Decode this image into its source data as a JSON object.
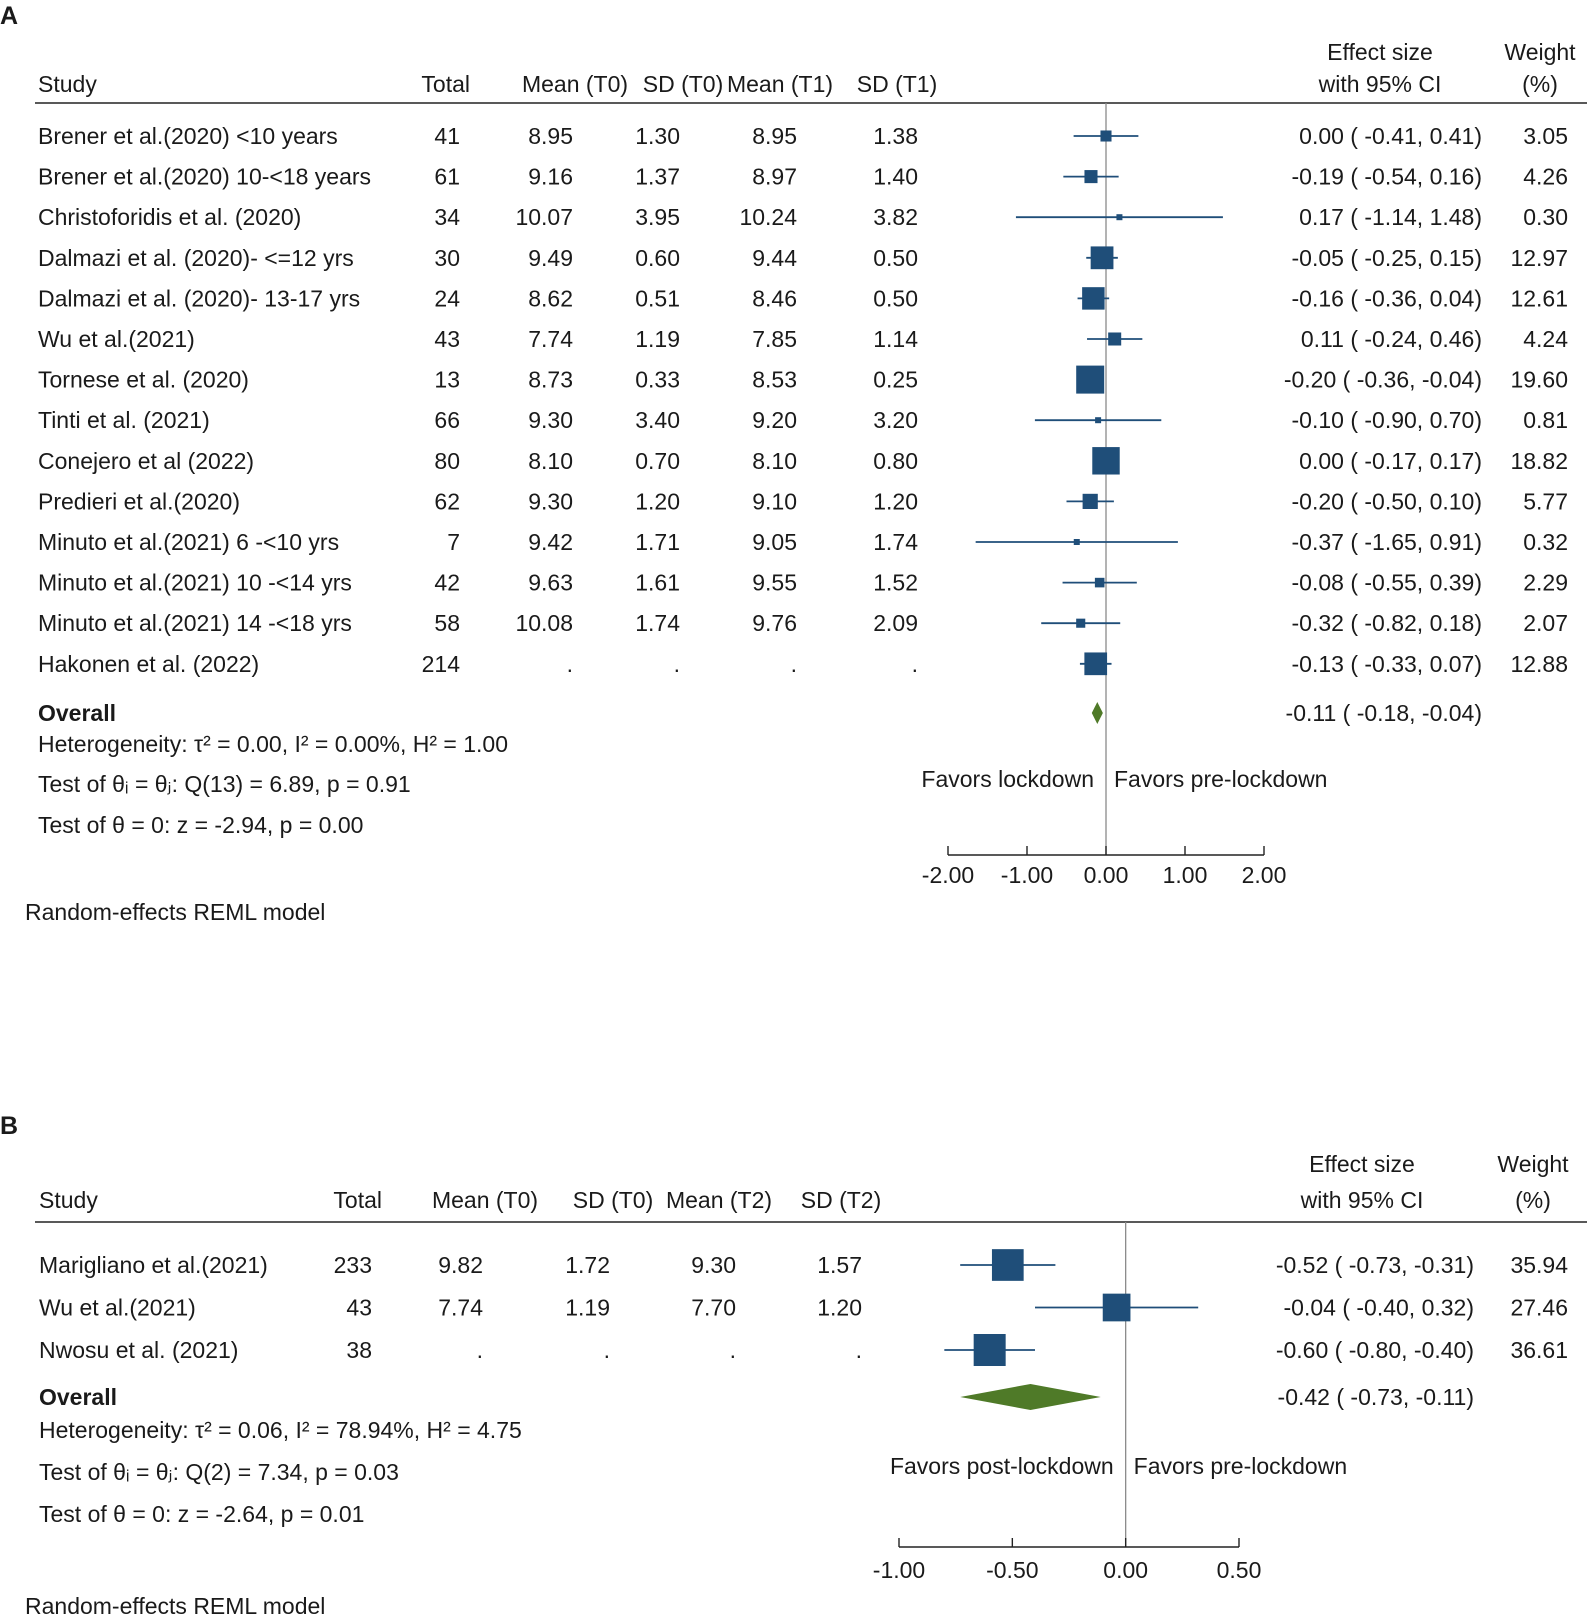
{
  "chart_data": [
    {
      "type": "forest",
      "panel_label": "A",
      "headers": {
        "study": "Study",
        "total": "Total",
        "mean_a": "Mean (T0)",
        "sd_a": "SD (T0)",
        "mean_b": "Mean (T1)",
        "sd_b": "SD (T1)",
        "effect_1": "Effect size",
        "effect_2": "with 95% CI",
        "weight_1": "Weight",
        "weight_2": "(%)"
      },
      "rows": [
        {
          "study": "Brener et al.(2020) <10 years",
          "total": "41",
          "mean_a": "8.95",
          "sd_a": "1.30",
          "mean_b": "8.95",
          "sd_b": "1.38",
          "es": 0.0,
          "lo": -0.41,
          "hi": 0.41,
          "ci_text": "0.00 ( -0.41,  0.41)",
          "weight": 3.05,
          "weight_text": "3.05"
        },
        {
          "study": "Brener et al.(2020) 10-<18 years",
          "total": "61",
          "mean_a": "9.16",
          "sd_a": "1.37",
          "mean_b": "8.97",
          "sd_b": "1.40",
          "es": -0.19,
          "lo": -0.54,
          "hi": 0.16,
          "ci_text": "-0.19 ( -0.54,  0.16)",
          "weight": 4.26,
          "weight_text": "4.26"
        },
        {
          "study": "Christoforidis et al. (2020)",
          "total": "34",
          "mean_a": "10.07",
          "sd_a": "3.95",
          "mean_b": "10.24",
          "sd_b": "3.82",
          "es": 0.17,
          "lo": -1.14,
          "hi": 1.48,
          "ci_text": "0.17 ( -1.14,  1.48)",
          "weight": 0.3,
          "weight_text": "0.30"
        },
        {
          "study": "Dalmazi et al. (2020)- <=12 yrs",
          "total": "30",
          "mean_a": "9.49",
          "sd_a": "0.60",
          "mean_b": "9.44",
          "sd_b": "0.50",
          "es": -0.05,
          "lo": -0.25,
          "hi": 0.15,
          "ci_text": "-0.05 ( -0.25,  0.15)",
          "weight": 12.97,
          "weight_text": "12.97"
        },
        {
          "study": "Dalmazi et al. (2020)- 13-17 yrs",
          "total": "24",
          "mean_a": "8.62",
          "sd_a": "0.51",
          "mean_b": "8.46",
          "sd_b": "0.50",
          "es": -0.16,
          "lo": -0.36,
          "hi": 0.04,
          "ci_text": "-0.16 ( -0.36,  0.04)",
          "weight": 12.61,
          "weight_text": "12.61"
        },
        {
          "study": "Wu et al.(2021)",
          "total": "43",
          "mean_a": "7.74",
          "sd_a": "1.19",
          "mean_b": "7.85",
          "sd_b": "1.14",
          "es": 0.11,
          "lo": -0.24,
          "hi": 0.46,
          "ci_text": "0.11 ( -0.24,  0.46)",
          "weight": 4.24,
          "weight_text": "4.24"
        },
        {
          "study": "Tornese et al. (2020)",
          "total": "13",
          "mean_a": "8.73",
          "sd_a": "0.33",
          "mean_b": "8.53",
          "sd_b": "0.25",
          "es": -0.2,
          "lo": -0.36,
          "hi": -0.04,
          "ci_text": "-0.20 ( -0.36, -0.04)",
          "weight": 19.6,
          "weight_text": "19.60"
        },
        {
          "study": "Tinti et al. (2021)",
          "total": "66",
          "mean_a": "9.30",
          "sd_a": "3.40",
          "mean_b": "9.20",
          "sd_b": "3.20",
          "es": -0.1,
          "lo": -0.9,
          "hi": 0.7,
          "ci_text": "-0.10 ( -0.90,  0.70)",
          "weight": 0.81,
          "weight_text": "0.81"
        },
        {
          "study": "Conejero et al (2022)",
          "total": "80",
          "mean_a": "8.10",
          "sd_a": "0.70",
          "mean_b": "8.10",
          "sd_b": "0.80",
          "es": 0.0,
          "lo": -0.17,
          "hi": 0.17,
          "ci_text": "0.00 ( -0.17,  0.17)",
          "weight": 18.82,
          "weight_text": "18.82"
        },
        {
          "study": "Predieri et al.(2020)",
          "total": "62",
          "mean_a": "9.30",
          "sd_a": "1.20",
          "mean_b": "9.10",
          "sd_b": "1.20",
          "es": -0.2,
          "lo": -0.5,
          "hi": 0.1,
          "ci_text": "-0.20 ( -0.50,  0.10)",
          "weight": 5.77,
          "weight_text": "5.77"
        },
        {
          "study": "Minuto et al.(2021) 6 -<10 yrs",
          "total": "7",
          "mean_a": "9.42",
          "sd_a": "1.71",
          "mean_b": "9.05",
          "sd_b": "1.74",
          "es": -0.37,
          "lo": -1.65,
          "hi": 0.91,
          "ci_text": "-0.37 ( -1.65,  0.91)",
          "weight": 0.32,
          "weight_text": "0.32"
        },
        {
          "study": "Minuto et al.(2021) 10 -<14 yrs",
          "total": "42",
          "mean_a": "9.63",
          "sd_a": "1.61",
          "mean_b": "9.55",
          "sd_b": "1.52",
          "es": -0.08,
          "lo": -0.55,
          "hi": 0.39,
          "ci_text": "-0.08 ( -0.55,  0.39)",
          "weight": 2.29,
          "weight_text": "2.29"
        },
        {
          "study": "Minuto et al.(2021) 14 -<18 yrs",
          "total": "58",
          "mean_a": "10.08",
          "sd_a": "1.74",
          "mean_b": "9.76",
          "sd_b": "2.09",
          "es": -0.32,
          "lo": -0.82,
          "hi": 0.18,
          "ci_text": "-0.32 ( -0.82,  0.18)",
          "weight": 2.07,
          "weight_text": "2.07"
        },
        {
          "study": "Hakonen et al. (2022)",
          "total": "214",
          "mean_a": ".",
          "sd_a": ".",
          "mean_b": ".",
          "sd_b": ".",
          "es": -0.13,
          "lo": -0.33,
          "hi": 0.07,
          "ci_text": "-0.13 ( -0.33,  0.07)",
          "weight": 12.88,
          "weight_text": "12.88"
        }
      ],
      "overall": {
        "label": "Overall",
        "es": -0.11,
        "lo": -0.18,
        "hi": -0.04,
        "ci_text": "-0.11 ( -0.18, -0.04)"
      },
      "stats": [
        "Heterogeneity: τ² = 0.00, I² = 0.00%, H² = 1.00",
        "Test of θᵢ = θⱼ: Q(13) = 6.89, p = 0.91",
        "Test of θ = 0: z = -2.94, p = 0.00"
      ],
      "favors_left": "Favors lockdown",
      "favors_right": "Favors pre-lockdown",
      "xlim": [
        -2.0,
        2.0
      ],
      "ticks": [
        -2,
        -1,
        0,
        1,
        2
      ],
      "tick_labels": [
        "-2.00",
        "-1.00",
        "0.00",
        "1.00",
        "2.00"
      ],
      "model_note": "Random-effects REML model",
      "colors": {
        "box": "#1f4e79",
        "line": "#1f4e79",
        "diamond": "#4f7a28"
      }
    },
    {
      "type": "forest",
      "panel_label": "B",
      "headers": {
        "study": "Study",
        "total": "Total",
        "mean_a": "Mean (T0)",
        "sd_a": "SD (T0)",
        "mean_b": "Mean (T2)",
        "sd_b": "SD (T2)",
        "effect_1": "Effect size",
        "effect_2": "with 95% CI",
        "weight_1": "Weight",
        "weight_2": "(%)"
      },
      "rows": [
        {
          "study": "Marigliano et al.(2021)",
          "total": "233",
          "mean_a": "9.82",
          "sd_a": "1.72",
          "mean_b": "9.30",
          "sd_b": "1.57",
          "es": -0.52,
          "lo": -0.73,
          "hi": -0.31,
          "ci_text": "-0.52 ( -0.73, -0.31)",
          "weight": 35.94,
          "weight_text": "35.94"
        },
        {
          "study": "Wu et al.(2021)",
          "total": "43",
          "mean_a": "7.74",
          "sd_a": "1.19",
          "mean_b": "7.70",
          "sd_b": "1.20",
          "es": -0.04,
          "lo": -0.4,
          "hi": 0.32,
          "ci_text": "-0.04 ( -0.40,  0.32)",
          "weight": 27.46,
          "weight_text": "27.46"
        },
        {
          "study": "Nwosu et al. (2021)",
          "total": "38",
          "mean_a": ".",
          "sd_a": ".",
          "mean_b": ".",
          "sd_b": ".",
          "es": -0.6,
          "lo": -0.8,
          "hi": -0.4,
          "ci_text": "-0.60 ( -0.80, -0.40)",
          "weight": 36.61,
          "weight_text": "36.61"
        }
      ],
      "overall": {
        "label": "Overall",
        "es": -0.42,
        "lo": -0.73,
        "hi": -0.11,
        "ci_text": "-0.42 ( -0.73, -0.11)"
      },
      "stats": [
        "Heterogeneity: τ² = 0.06, I² = 78.94%, H² = 4.75",
        "Test of θᵢ = θⱼ: Q(2) = 7.34, p = 0.03",
        "Test of θ = 0: z = -2.64, p = 0.01"
      ],
      "favors_left": "Favors post-lockdown",
      "favors_right": "Favors pre-lockdown",
      "xlim": [
        -1.0,
        0.5
      ],
      "ticks": [
        -1,
        -0.5,
        0,
        0.5
      ],
      "tick_labels": [
        "-1.00",
        "-0.50",
        "0.00",
        "0.50"
      ],
      "model_note": "Random-effects REML model",
      "colors": {
        "box": "#1f4e79",
        "line": "#1f4e79",
        "diamond": "#4f7a28"
      }
    }
  ]
}
